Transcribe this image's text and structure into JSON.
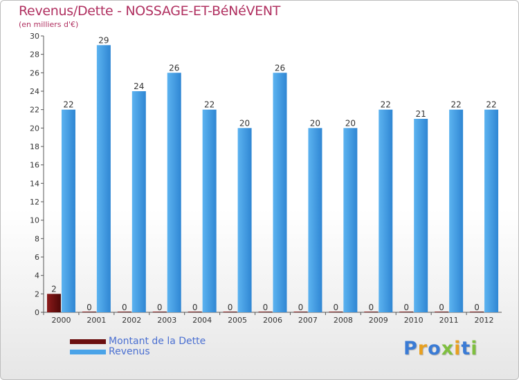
{
  "chart_data": {
    "type": "bar",
    "title": "Revenus/Dette - NOSSAGE-ET-BéNéVENT",
    "subtitle": "(en milliers d'€)",
    "xlabel": "",
    "ylabel": "",
    "categories": [
      "2000",
      "2001",
      "2002",
      "2003",
      "2004",
      "2005",
      "2006",
      "2007",
      "2008",
      "2009",
      "2010",
      "2011",
      "2012"
    ],
    "series": [
      {
        "name": "Montant de la Dette",
        "color": "#6b0f0f",
        "values": [
          2,
          0,
          0,
          0,
          0,
          0,
          0,
          0,
          0,
          0,
          0,
          0,
          0
        ]
      },
      {
        "name": "Revenus",
        "color": "#4aa3e8",
        "values": [
          22,
          29,
          24,
          26,
          22,
          20,
          26,
          20,
          20,
          22,
          21,
          22,
          22
        ]
      }
    ],
    "ylim": [
      0,
      30
    ],
    "yticks": [
      0,
      2,
      4,
      6,
      8,
      10,
      12,
      14,
      16,
      18,
      20,
      22,
      24,
      26,
      28,
      30
    ],
    "grid": false,
    "legend_position": "bottom-left"
  },
  "logo": {
    "text": "Proxiti",
    "letters": [
      {
        "char": "P",
        "color": "#3a7bd5"
      },
      {
        "char": "r",
        "color": "#e8a020"
      },
      {
        "char": "o",
        "color": "#3a7bd5"
      },
      {
        "char": "x",
        "color": "#7fbf3f"
      },
      {
        "char": "i",
        "color": "#e8a020"
      },
      {
        "char": "t",
        "color": "#3a7bd5"
      },
      {
        "char": "i",
        "color": "#7fbf3f"
      }
    ]
  }
}
